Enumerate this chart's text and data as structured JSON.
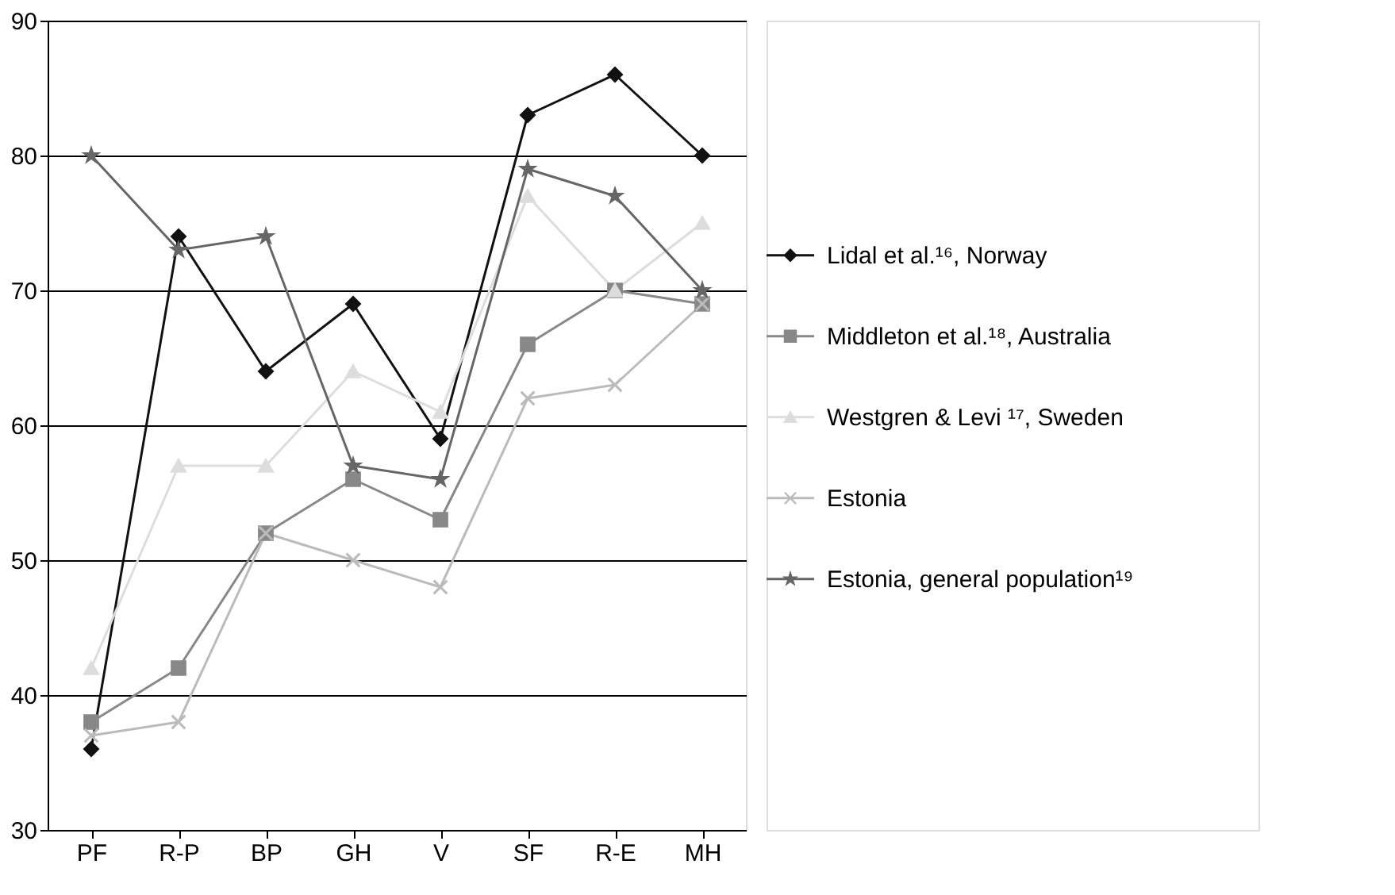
{
  "chart_data": {
    "type": "line",
    "categories": [
      "PF",
      "R-P",
      "BP",
      "GH",
      "V",
      "SF",
      "R-E",
      "MH"
    ],
    "ylim": [
      30,
      90
    ],
    "yticks": [
      30,
      40,
      50,
      60,
      70,
      80,
      90
    ],
    "grid": "y",
    "legend": "right",
    "line_style": "solid",
    "series": [
      {
        "name": "Lidal et al.¹⁶, Norway",
        "color": "#111111",
        "marker": "diamond",
        "values": [
          36,
          74,
          64,
          69,
          59,
          83,
          86,
          80
        ]
      },
      {
        "name": "Middleton et al.¹⁸, Australia",
        "color": "#888888",
        "marker": "square",
        "values": [
          38,
          42,
          52,
          56,
          53,
          66,
          70,
          69
        ]
      },
      {
        "name": "Westgren & Levi ¹⁷, Sweden",
        "color": "#dddddd",
        "marker": "triangle",
        "values": [
          42,
          57,
          57,
          64,
          61,
          77,
          70,
          75
        ]
      },
      {
        "name": "Estonia",
        "color": "#bbbbbb",
        "marker": "cross",
        "values": [
          37,
          38,
          52,
          50,
          48,
          62,
          63,
          69
        ]
      },
      {
        "name": "Estonia, general population¹⁹",
        "color": "#666666",
        "marker": "star",
        "values": [
          80,
          73,
          74,
          57,
          56,
          79,
          77,
          70
        ]
      }
    ]
  }
}
